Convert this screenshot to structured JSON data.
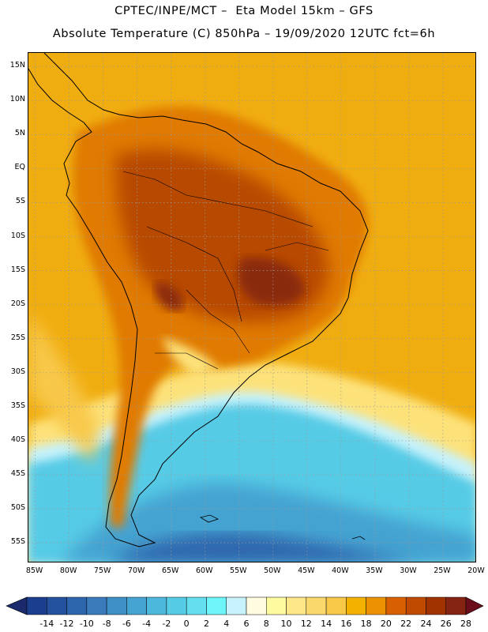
{
  "header": {
    "line1": "CPTEC/INPE/MCT –  Eta Model 15km – GFS",
    "line2": "Absolute Temperature (C) 850hPa – 19/09/2020 12UTC fct=6h"
  },
  "axes": {
    "latitude_labels": [
      "15N",
      "10N",
      "5N",
      "EQ",
      "5S",
      "10S",
      "15S",
      "20S",
      "25S",
      "30S",
      "35S",
      "40S",
      "45S",
      "50S",
      "55S"
    ],
    "latitude_values": [
      15,
      10,
      5,
      0,
      -5,
      -10,
      -15,
      -20,
      -25,
      -30,
      -35,
      -40,
      -45,
      -50,
      -55
    ],
    "longitude_labels": [
      "85W",
      "80W",
      "75W",
      "70W",
      "65W",
      "60W",
      "55W",
      "50W",
      "45W",
      "40W",
      "35W",
      "30W",
      "25W",
      "20W"
    ],
    "longitude_values": [
      -85,
      -80,
      -75,
      -70,
      -65,
      -60,
      -55,
      -50,
      -45,
      -40,
      -35,
      -30,
      -25,
      -20
    ],
    "lon_range": [
      -86,
      -20
    ],
    "lat_range": [
      17,
      -58
    ],
    "grid": true
  },
  "colorbar": {
    "tick_labels": [
      "-14",
      "-12",
      "-10",
      "-8",
      "-6",
      "-4",
      "-2",
      "0",
      "2",
      "4",
      "6",
      "8",
      "10",
      "12",
      "14",
      "16",
      "18",
      "20",
      "22",
      "24",
      "26",
      "28"
    ],
    "colors": [
      "#1b3f8e",
      "#24529e",
      "#2e66ad",
      "#3a7bbc",
      "#3f8fc7",
      "#45a3d1",
      "#4cb8dc",
      "#56cbe6",
      "#64dff0",
      "#6ef5fa",
      "#c8f2fb",
      "#fefbe1",
      "#fefa9f",
      "#fde788",
      "#fbd86b",
      "#f8c848",
      "#f3b100",
      "#ec9200",
      "#d96000",
      "#c04a00",
      "#a03300",
      "#862413"
    ],
    "low_arrow_color": "#1a2a6c",
    "high_arrow_color": "#6b0e1c"
  }
}
